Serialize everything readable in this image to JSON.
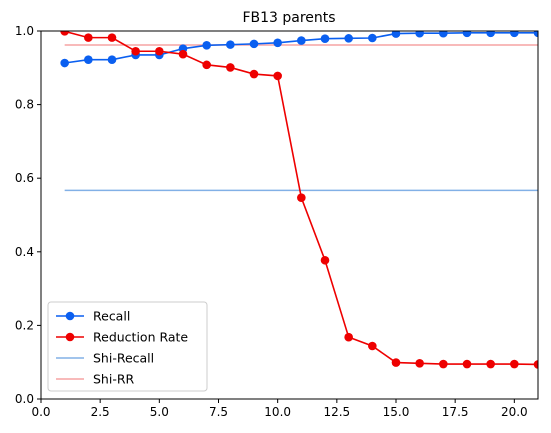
{
  "chart_data": {
    "type": "line",
    "title": "FB13 parents",
    "xlabel": "",
    "ylabel": "",
    "xlim": [
      0,
      21
    ],
    "ylim": [
      0,
      1
    ],
    "xticks": [
      {
        "value": 0,
        "label": "0.0"
      },
      {
        "value": 2.5,
        "label": "2.5"
      },
      {
        "value": 5,
        "label": "5.0"
      },
      {
        "value": 7.5,
        "label": "7.5"
      },
      {
        "value": 10,
        "label": "10.0"
      },
      {
        "value": 12.5,
        "label": "12.5"
      },
      {
        "value": 15,
        "label": "15.0"
      },
      {
        "value": 17.5,
        "label": "17.5"
      },
      {
        "value": 20,
        "label": "20.0"
      }
    ],
    "yticks": [
      {
        "value": 0,
        "label": "0.0"
      },
      {
        "value": 0.2,
        "label": "0.2"
      },
      {
        "value": 0.4,
        "label": "0.4"
      },
      {
        "value": 0.6,
        "label": "0.6"
      },
      {
        "value": 0.8,
        "label": "0.8"
      },
      {
        "value": 1,
        "label": "1.0"
      }
    ],
    "grid": false,
    "legend_position": "lower-left",
    "x": [
      1,
      2,
      3,
      4,
      5,
      6,
      7,
      8,
      9,
      10,
      11,
      12,
      13,
      14,
      15,
      16,
      17,
      18,
      19,
      20,
      21
    ],
    "series": [
      {
        "name": "Recall",
        "color": "#0a5ff0",
        "marker": "circle",
        "values": [
          0.913,
          0.922,
          0.922,
          0.935,
          0.935,
          0.952,
          0.961,
          0.963,
          0.965,
          0.968,
          0.974,
          0.979,
          0.98,
          0.981,
          0.993,
          0.994,
          0.994,
          0.995,
          0.995,
          0.995,
          0.995
        ]
      },
      {
        "name": "Reduction Rate",
        "color": "#ee0000",
        "marker": "circle",
        "values": [
          0.999,
          0.982,
          0.982,
          0.945,
          0.945,
          0.937,
          0.908,
          0.901,
          0.883,
          0.878,
          0.547,
          0.377,
          0.168,
          0.144,
          0.099,
          0.097,
          0.095,
          0.095,
          0.095,
          0.095,
          0.094
        ]
      },
      {
        "name": "Shi-Recall",
        "color": "#82b0e6",
        "marker": "none",
        "hline": 0.567
      },
      {
        "name": "Shi-RR",
        "color": "#f5a3a3",
        "marker": "none",
        "hline": 0.962
      }
    ]
  }
}
